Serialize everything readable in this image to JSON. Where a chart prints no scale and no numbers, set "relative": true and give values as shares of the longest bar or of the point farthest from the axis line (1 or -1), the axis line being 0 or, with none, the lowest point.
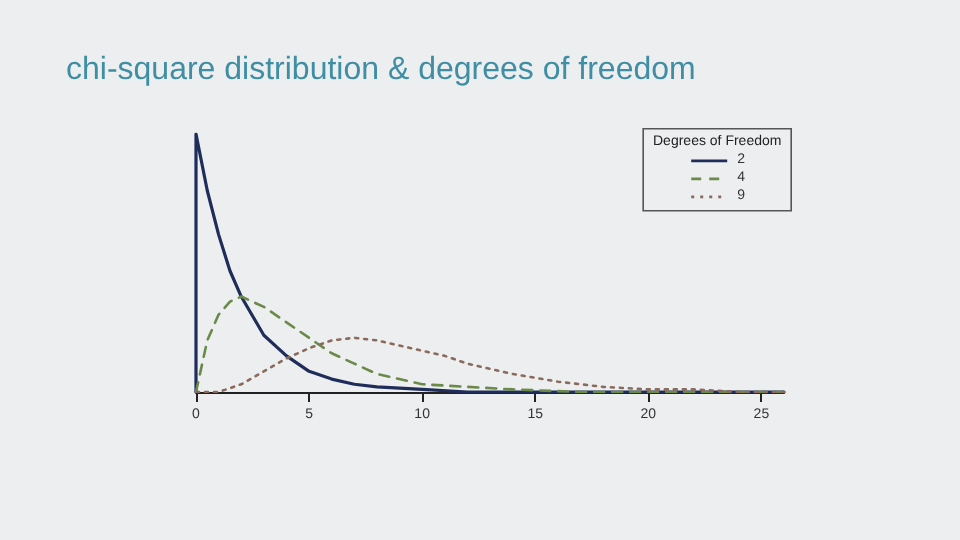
{
  "chart_data": {
    "type": "line",
    "title": "chi-square distribution & degrees of freedom",
    "relative": true,
    "xlim": [
      0,
      26
    ],
    "xticks": [
      0,
      5,
      10,
      15,
      20,
      25
    ],
    "legend": "top right",
    "legend_title": "Degrees of Freedom",
    "grid": false,
    "marker": "none",
    "series": [
      {
        "name": "2",
        "color": "#1f2d5a",
        "line_style": "solid",
        "x": [
          0,
          0,
          0.5,
          1,
          1.5,
          2,
          3,
          4,
          5,
          6,
          7,
          8,
          10,
          12,
          15,
          20,
          26
        ],
        "values": [
          0,
          1,
          0.78,
          0.61,
          0.47,
          0.37,
          0.22,
          0.14,
          0.08,
          0.05,
          0.03,
          0.02,
          0.01,
          0,
          0,
          0,
          0
        ]
      },
      {
        "name": "4",
        "color": "#6b8a4a",
        "line_style": "dashed",
        "x": [
          0,
          0.5,
          1,
          1.5,
          2,
          3,
          4,
          5,
          6,
          7,
          8,
          10,
          12,
          14,
          17,
          20,
          26
        ],
        "values": [
          0,
          0.2,
          0.3,
          0.35,
          0.37,
          0.33,
          0.27,
          0.21,
          0.15,
          0.11,
          0.07,
          0.03,
          0.02,
          0.01,
          0,
          0,
          0
        ]
      },
      {
        "name": "9",
        "color": "#8a6a5a",
        "line_style": "dotted",
        "x": [
          0,
          1,
          2,
          3,
          4,
          5,
          6,
          7,
          8,
          9,
          10,
          11,
          12,
          14,
          16,
          18,
          20,
          22,
          24,
          26
        ],
        "values": [
          0,
          0,
          0.03,
          0.08,
          0.13,
          0.17,
          0.2,
          0.21,
          0.2,
          0.18,
          0.16,
          0.14,
          0.11,
          0.07,
          0.04,
          0.02,
          0.01,
          0.01,
          0,
          0
        ]
      }
    ]
  }
}
